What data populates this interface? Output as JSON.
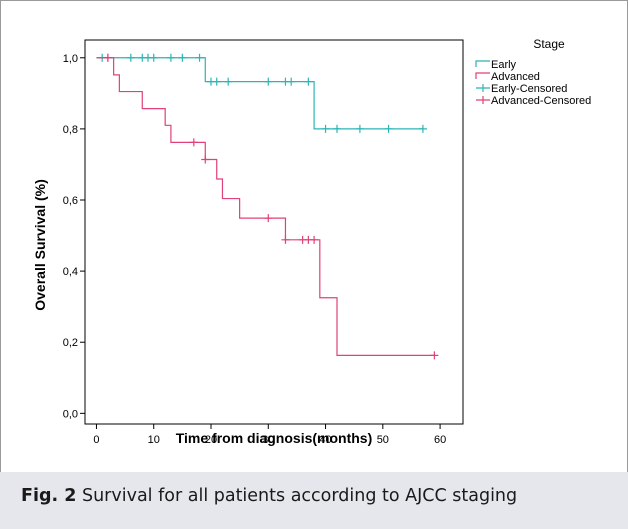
{
  "chart_data": {
    "type": "line",
    "subtype": "kaplan-meier-step",
    "xlabel": "Time from diagnosis(months)",
    "ylabel": "Overall Survival (%)",
    "xlim": [
      -2,
      64
    ],
    "ylim": [
      -0.03,
      1.05
    ],
    "x_ticks": [
      0,
      10,
      20,
      30,
      40,
      50,
      60
    ],
    "y_ticks": [
      0.0,
      0.2,
      0.4,
      0.6,
      0.8,
      1.0
    ],
    "y_tick_labels": [
      "0,0",
      "0,2",
      "0,4",
      "0,6",
      "0,8",
      "1,0"
    ],
    "grid": false,
    "legend_title": "Stage",
    "legend_position": "top-right",
    "legend": [
      "Early",
      "Advanced",
      "Early-Censored",
      "Advanced-Censored"
    ],
    "series": [
      {
        "name": "Early",
        "color": "#2bb5b5",
        "steps": [
          [
            0,
            1.0
          ],
          [
            19,
            0.933
          ],
          [
            38,
            0.8
          ],
          [
            57,
            0.8
          ]
        ],
        "censored": [
          [
            1,
            1.0
          ],
          [
            2,
            1.0
          ],
          [
            6,
            1.0
          ],
          [
            8,
            1.0
          ],
          [
            9,
            1.0
          ],
          [
            10,
            1.0
          ],
          [
            13,
            1.0
          ],
          [
            15,
            1.0
          ],
          [
            18,
            1.0
          ],
          [
            20,
            0.933
          ],
          [
            21,
            0.933
          ],
          [
            23,
            0.933
          ],
          [
            30,
            0.933
          ],
          [
            33,
            0.933
          ],
          [
            34,
            0.933
          ],
          [
            37,
            0.933
          ],
          [
            40,
            0.8
          ],
          [
            42,
            0.8
          ],
          [
            46,
            0.8
          ],
          [
            51,
            0.8
          ],
          [
            57,
            0.8
          ]
        ]
      },
      {
        "name": "Advanced",
        "color": "#e0417a",
        "steps": [
          [
            0,
            1.0
          ],
          [
            3,
            0.952
          ],
          [
            4,
            0.905
          ],
          [
            8,
            0.857
          ],
          [
            12,
            0.81
          ],
          [
            13,
            0.762
          ],
          [
            18,
            0.762
          ],
          [
            19,
            0.714
          ],
          [
            21,
            0.659
          ],
          [
            22,
            0.604
          ],
          [
            25,
            0.549
          ],
          [
            33,
            0.488
          ],
          [
            39,
            0.325
          ],
          [
            42,
            0.163
          ],
          [
            59,
            0.163
          ]
        ],
        "censored": [
          [
            2,
            1.0
          ],
          [
            17,
            0.762
          ],
          [
            19,
            0.714
          ],
          [
            30,
            0.549
          ],
          [
            33,
            0.488
          ],
          [
            36,
            0.488
          ],
          [
            37,
            0.488
          ],
          [
            38,
            0.488
          ],
          [
            59,
            0.163
          ]
        ]
      }
    ]
  },
  "caption": {
    "label": "Fig. 2",
    "text": "Survival for all patients according to AJCC staging"
  }
}
